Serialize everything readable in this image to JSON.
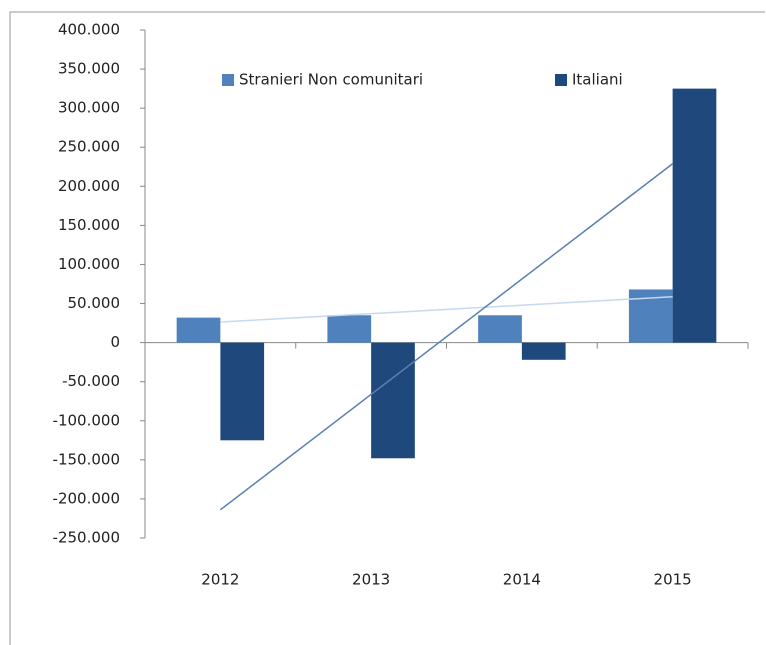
{
  "chart_data": {
    "type": "bar",
    "categories": [
      "2012",
      "2013",
      "2014",
      "2015"
    ],
    "series": [
      {
        "name": "Stranieri Non comunitari",
        "color": "#4f81bd",
        "values": [
          32000,
          35000,
          35000,
          68000
        ]
      },
      {
        "name": "Italiani",
        "color": "#1f497d",
        "values": [
          -125000,
          -148000,
          -22000,
          325000
        ]
      }
    ],
    "ylim": [
      -250000,
      400000
    ],
    "yticks": [
      {
        "value": -250000,
        "label": "-250.000"
      },
      {
        "value": -200000,
        "label": "-200.000"
      },
      {
        "value": -150000,
        "label": "-150.000"
      },
      {
        "value": -100000,
        "label": "-100.000"
      },
      {
        "value": -50000,
        "label": "-50.000"
      },
      0,
      {
        "value": 50000,
        "label": "50.000"
      },
      {
        "value": 100000,
        "label": "100.000"
      },
      {
        "value": 150000,
        "label": "150.000"
      },
      {
        "value": 200000,
        "label": "200.000"
      },
      {
        "value": 250000,
        "label": "250.000"
      },
      {
        "value": 300000,
        "label": "300.000"
      },
      {
        "value": 350000,
        "label": "350.000"
      },
      {
        "value": 400000,
        "label": "400.000"
      }
    ],
    "trendline": true,
    "trendline_colors": [
      "#c6d9f1",
      "#5a7fb0"
    ],
    "legend": "top"
  }
}
